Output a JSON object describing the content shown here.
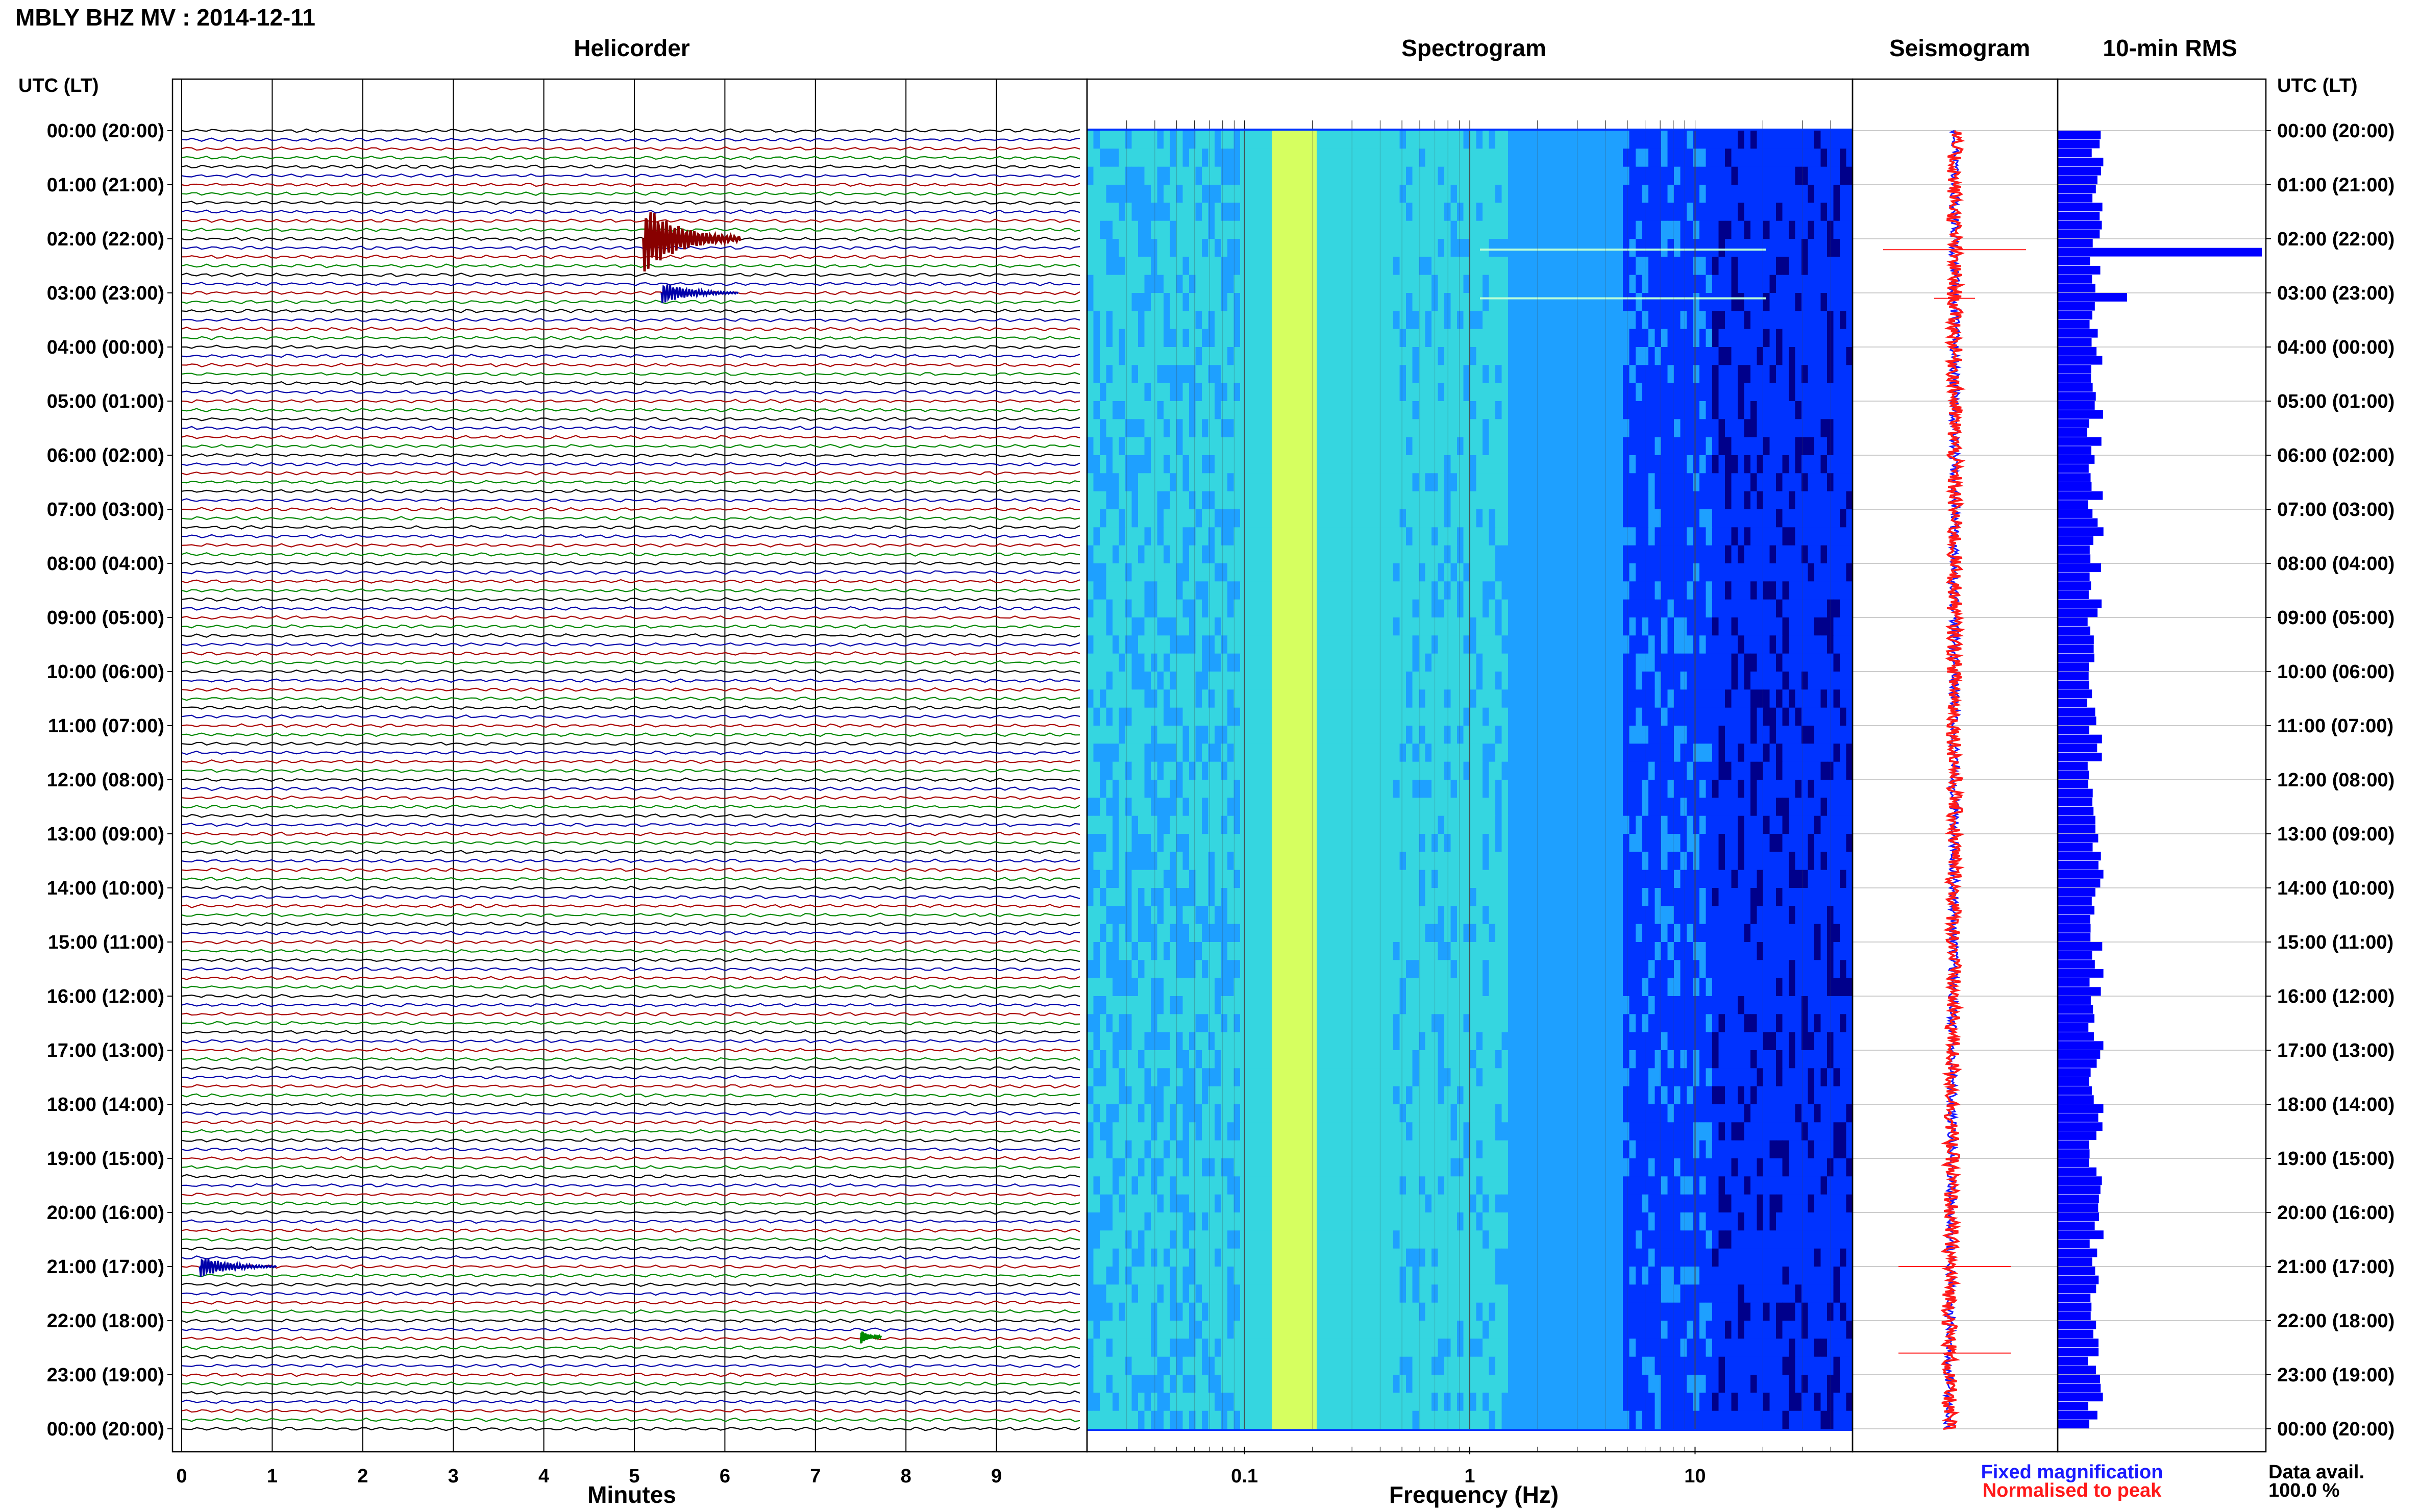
{
  "header": {
    "title": "MBLY BHZ MV : 2014-12-11",
    "time_label_left": "UTC (LT)",
    "time_label_right": "UTC (LT)"
  },
  "panels": {
    "helicorder_title": "Helicorder",
    "spectrogram_title": "Spectrogram",
    "seismogram_title": "Seismogram",
    "rms_title": "10-min RMS"
  },
  "time_labels": [
    "00:00 (20:00)",
    "01:00 (21:00)",
    "02:00 (22:00)",
    "03:00 (23:00)",
    "04:00 (00:00)",
    "05:00 (01:00)",
    "06:00 (02:00)",
    "07:00 (03:00)",
    "08:00 (04:00)",
    "09:00 (05:00)",
    "10:00 (06:00)",
    "11:00 (07:00)",
    "12:00 (08:00)",
    "13:00 (09:00)",
    "14:00 (10:00)",
    "15:00 (11:00)",
    "16:00 (12:00)",
    "17:00 (13:00)",
    "18:00 (14:00)",
    "19:00 (15:00)",
    "20:00 (16:00)",
    "21:00 (17:00)",
    "22:00 (18:00)",
    "23:00 (19:00)",
    "00:00 (20:00)"
  ],
  "legend": {
    "fixed": "Fixed magnification",
    "normalised": "Normalised to peak",
    "fixed_color": "#1a1aff",
    "normalised_color": "#ff1a1a"
  },
  "data_avail": {
    "label": "Data avail.",
    "value": "100.0 %"
  },
  "chart_data": [
    {
      "type": "line",
      "panel": "Helicorder",
      "xlabel": "Minutes",
      "xlim": [
        0,
        10
      ],
      "x_ticks": [
        "0",
        "1",
        "2",
        "3",
        "4",
        "5",
        "6",
        "7",
        "8",
        "9"
      ],
      "trace_colors": [
        "#000000",
        "#0000aa",
        "#aa0000",
        "#008800"
      ],
      "rows_per_hour": 6,
      "events": [
        {
          "hour": 2.0,
          "minute_start": 5.1,
          "amplitude": "large",
          "color": "#880000"
        },
        {
          "hour": 3.0,
          "minute_start": 5.3,
          "amplitude": "medium",
          "color": "#0000aa"
        },
        {
          "hour": 21.0,
          "minute_start": 0.2,
          "amplitude": "medium",
          "color": "#0000aa"
        },
        {
          "hour": 22.3,
          "minute_start": 7.5,
          "amplitude": "small",
          "color": "#008800"
        }
      ]
    },
    {
      "type": "heatmap",
      "panel": "Spectrogram",
      "xlabel": "Frequency (Hz)",
      "x_scale": "log",
      "xlim": [
        0.02,
        50
      ],
      "x_ticks": [
        "0.1",
        "1",
        "10"
      ],
      "colormap": [
        "#00008b",
        "#0033ff",
        "#1ea0ff",
        "#35d6e0",
        "#d6ff60"
      ],
      "features": [
        {
          "description_only": false,
          "hour": 2.2,
          "type": "broadband line"
        },
        {
          "hour": 3.1,
          "type": "broadband line"
        }
      ]
    },
    {
      "type": "line",
      "panel": "Seismogram",
      "series": [
        {
          "name": "Fixed magnification",
          "color": "#1a1aff"
        },
        {
          "name": "Normalised to peak",
          "color": "#ff1a1a"
        }
      ],
      "spikes_hours": [
        2.2,
        3.1,
        21.0,
        22.6
      ]
    },
    {
      "type": "bar",
      "panel": "10-min RMS",
      "orientation": "horizontal",
      "bin_minutes": 10,
      "baseline_level": 0.18,
      "peaks": [
        {
          "hour": 2.2,
          "level": 1.0
        },
        {
          "hour": 3.0,
          "level": 0.34
        }
      ],
      "color": "#0000ff"
    }
  ]
}
